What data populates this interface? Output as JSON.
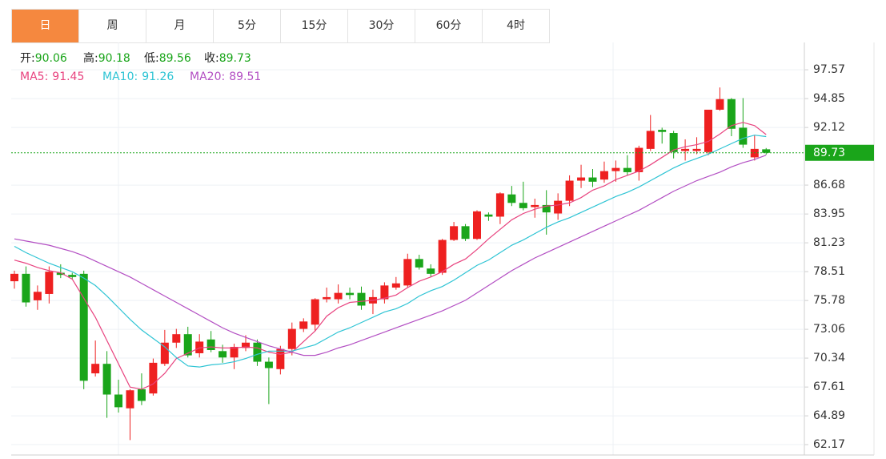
{
  "tabs": [
    "日",
    "周",
    "月",
    "5分",
    "15分",
    "30分",
    "60分",
    "4时"
  ],
  "active_tab": 0,
  "chart_data": {
    "type": "candlestick",
    "ohlc_labels": [
      "开:",
      "高:",
      "低:",
      "收:"
    ],
    "up_color": "#ee2020",
    "down_color": "#1aa51a",
    "value_color": "#1aa51a",
    "open": [
      77.6,
      78.3,
      75.8,
      76.4,
      78.4,
      78.2,
      78.3,
      68.9,
      69.8,
      66.9,
      65.6,
      67.4,
      67.0,
      69.8,
      71.8,
      72.6,
      70.8,
      72.1,
      71.0,
      70.4,
      71.3,
      71.8,
      70.0,
      69.3,
      71.2,
      73.1,
      73.5,
      75.9,
      75.9,
      76.5,
      76.5,
      75.5,
      75.9,
      77.0,
      77.2,
      79.7,
      78.8,
      78.4,
      81.5,
      82.8,
      81.6,
      83.9,
      83.7,
      85.8,
      85.0,
      84.6,
      84.8,
      84.0,
      85.2,
      87.1,
      87.4,
      87.2,
      88.0,
      88.3,
      87.9,
      90.1,
      91.9,
      91.6,
      89.9,
      89.9,
      89.8,
      93.8,
      94.8,
      92.1,
      89.3,
      90.06
    ],
    "high": [
      78.6,
      79.0,
      77.2,
      79.0,
      79.2,
      78.4,
      78.6,
      72.0,
      71.0,
      68.3,
      67.4,
      68.9,
      70.3,
      73.0,
      73.1,
      73.3,
      72.6,
      72.9,
      71.6,
      71.7,
      72.5,
      72.1,
      70.4,
      71.5,
      73.7,
      74.1,
      76.0,
      77.0,
      77.3,
      77.0,
      77.1,
      76.8,
      77.5,
      78.0,
      80.2,
      80.1,
      79.2,
      81.6,
      83.2,
      83.0,
      84.3,
      84.1,
      86.0,
      86.6,
      87.0,
      85.4,
      86.2,
      85.9,
      87.6,
      88.6,
      88.2,
      88.9,
      89.0,
      89.5,
      90.4,
      93.3,
      92.1,
      91.8,
      91.0,
      91.2,
      93.8,
      95.9,
      94.9,
      94.9,
      91.4,
      90.18
    ],
    "low": [
      76.9,
      75.2,
      74.9,
      75.5,
      77.9,
      77.8,
      67.4,
      68.6,
      64.7,
      65.2,
      62.6,
      65.9,
      66.8,
      69.6,
      71.3,
      70.4,
      70.4,
      70.9,
      69.9,
      69.3,
      71.0,
      69.6,
      66.0,
      68.8,
      70.6,
      72.8,
      72.9,
      75.6,
      75.5,
      75.9,
      74.9,
      74.5,
      75.5,
      76.8,
      77.0,
      78.7,
      78.0,
      78.2,
      81.4,
      81.4,
      81.5,
      83.3,
      83.0,
      84.7,
      84.3,
      83.6,
      82.0,
      83.4,
      84.7,
      86.4,
      86.5,
      86.9,
      87.0,
      87.6,
      87.1,
      89.9,
      90.6,
      89.2,
      89.0,
      89.6,
      89.5,
      93.7,
      91.3,
      90.2,
      89.0,
      89.56
    ],
    "close": [
      78.3,
      75.6,
      76.6,
      78.5,
      78.2,
      78.0,
      68.2,
      69.8,
      66.9,
      65.7,
      67.3,
      66.3,
      69.9,
      71.8,
      72.6,
      70.6,
      71.9,
      71.1,
      70.4,
      71.4,
      71.8,
      70.0,
      69.4,
      71.2,
      73.1,
      73.8,
      75.9,
      76.1,
      76.5,
      76.3,
      75.3,
      76.1,
      77.2,
      77.4,
      79.7,
      78.9,
      78.3,
      81.5,
      82.8,
      81.6,
      84.2,
      83.7,
      85.9,
      85.0,
      84.5,
      84.8,
      84.1,
      85.2,
      87.1,
      87.4,
      87.0,
      88.0,
      88.3,
      87.9,
      90.2,
      91.8,
      91.7,
      89.8,
      90.1,
      90.1,
      93.8,
      94.8,
      92.0,
      90.5,
      90.1,
      89.73
    ],
    "series": [
      {
        "name": "MA5:",
        "color": "#e8437f",
        "values": [
          79.6,
          79.3,
          78.9,
          78.6,
          78.4,
          77.8,
          76.0,
          74.2,
          72.0,
          69.8,
          67.6,
          67.4,
          67.9,
          68.9,
          70.3,
          70.8,
          71.3,
          71.4,
          71.3,
          71.3,
          71.4,
          71.3,
          70.9,
          70.7,
          70.9,
          71.9,
          72.9,
          74.3,
          75.1,
          75.6,
          75.7,
          75.8,
          76.0,
          76.3,
          77.0,
          77.6,
          78.0,
          78.5,
          79.2,
          79.7,
          80.6,
          81.6,
          82.5,
          83.4,
          84.0,
          84.4,
          84.7,
          84.8,
          85.0,
          85.5,
          86.2,
          86.6,
          87.2,
          87.6,
          88.0,
          88.6,
          89.3,
          90.0,
          90.3,
          90.5,
          90.8,
          91.5,
          92.3,
          92.6,
          92.3,
          91.45
        ]
      },
      {
        "name": "MA10:",
        "color": "#2ec4d4",
        "values": [
          80.9,
          80.3,
          79.8,
          79.3,
          78.9,
          78.5,
          77.9,
          77.2,
          76.2,
          75.1,
          74.0,
          73.0,
          72.2,
          71.4,
          70.4,
          69.6,
          69.5,
          69.7,
          69.8,
          70.0,
          70.3,
          70.7,
          71.0,
          71.0,
          71.0,
          71.3,
          71.6,
          72.2,
          72.8,
          73.2,
          73.7,
          74.2,
          74.7,
          75.0,
          75.5,
          76.2,
          76.7,
          77.1,
          77.7,
          78.4,
          79.1,
          79.6,
          80.3,
          81.0,
          81.5,
          82.1,
          82.7,
          83.2,
          83.6,
          84.1,
          84.6,
          85.1,
          85.6,
          86.0,
          86.5,
          87.1,
          87.7,
          88.3,
          88.8,
          89.2,
          89.6,
          90.1,
          90.6,
          91.1,
          91.4,
          91.26
        ]
      },
      {
        "name": "MA20:",
        "color": "#b34fc3",
        "values": [
          81.6,
          81.4,
          81.2,
          81.0,
          80.7,
          80.4,
          80.0,
          79.5,
          79.0,
          78.5,
          78.0,
          77.4,
          76.8,
          76.2,
          75.6,
          75.0,
          74.4,
          73.8,
          73.2,
          72.7,
          72.3,
          71.9,
          71.5,
          71.2,
          70.9,
          70.6,
          70.6,
          70.9,
          71.3,
          71.6,
          72.0,
          72.4,
          72.8,
          73.2,
          73.6,
          74.0,
          74.4,
          74.8,
          75.3,
          75.8,
          76.5,
          77.2,
          77.9,
          78.6,
          79.2,
          79.8,
          80.3,
          80.8,
          81.3,
          81.8,
          82.3,
          82.8,
          83.3,
          83.8,
          84.3,
          84.9,
          85.5,
          86.1,
          86.6,
          87.1,
          87.5,
          87.9,
          88.4,
          88.8,
          89.1,
          89.51
        ]
      }
    ],
    "ylim": [
      61.19,
      100.0
    ],
    "yticks": [
      62.17,
      64.89,
      67.61,
      70.34,
      73.06,
      75.78,
      78.51,
      81.23,
      83.95,
      86.68,
      92.12,
      94.85,
      97.57
    ],
    "grid": true
  }
}
